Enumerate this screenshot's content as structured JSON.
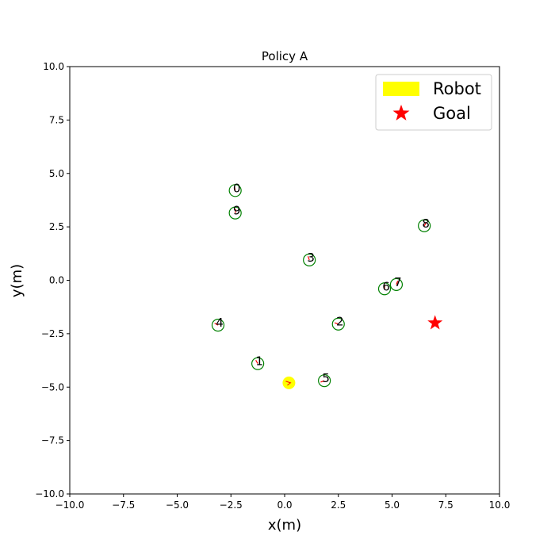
{
  "chart_data": {
    "type": "scatter",
    "title": "Policy A",
    "xlabel": "x(m)",
    "ylabel": "y(m)",
    "xlim": [
      -10,
      10
    ],
    "ylim": [
      -10,
      10
    ],
    "xticks": [
      -10,
      -7.5,
      -5,
      -2.5,
      0,
      2.5,
      5,
      7.5,
      10
    ],
    "yticks": [
      -10,
      -7.5,
      -5,
      -2.5,
      0,
      2.5,
      5,
      7.5,
      10
    ],
    "xtick_labels": [
      "−10.0",
      "−7.5",
      "−5.0",
      "−2.5",
      "0.0",
      "2.5",
      "5.0",
      "7.5",
      "10.0"
    ],
    "ytick_labels": [
      "−10.0",
      "−7.5",
      "−5.0",
      "−2.5",
      "0.0",
      "2.5",
      "5.0",
      "7.5",
      "10.0"
    ],
    "grid": false,
    "legend": {
      "placement": "top-right",
      "entries": [
        {
          "label": "Robot",
          "marker": "patch",
          "color": "#ffff00"
        },
        {
          "label": "Goal",
          "marker": "star",
          "color": "#ff0000"
        }
      ]
    },
    "robot": {
      "x": 0.2,
      "y": -4.8,
      "color": "#ffff00",
      "heading_color": "#ff0000"
    },
    "goal": {
      "x": 7.0,
      "y": -2.0,
      "color": "#ff0000"
    },
    "agents": [
      {
        "id": "0",
        "x": -2.3,
        "y": 4.2,
        "heading": 100
      },
      {
        "id": "1",
        "x": -1.25,
        "y": -3.9,
        "heading": 120
      },
      {
        "id": "2",
        "x": 2.5,
        "y": -2.05,
        "heading": 160
      },
      {
        "id": "3",
        "x": 1.15,
        "y": 0.95,
        "heading": 110
      },
      {
        "id": "4",
        "x": -3.1,
        "y": -2.1,
        "heading": 150
      },
      {
        "id": "5",
        "x": 1.85,
        "y": -4.7,
        "heading": 200
      },
      {
        "id": "6",
        "x": 4.65,
        "y": -0.4,
        "heading": 90
      },
      {
        "id": "7",
        "x": 5.2,
        "y": -0.2,
        "heading": 70
      },
      {
        "id": "8",
        "x": 6.5,
        "y": 2.55,
        "heading": 60
      },
      {
        "id": "9",
        "x": -2.3,
        "y": 3.15,
        "heading": 80
      }
    ],
    "agent_color": "#008000",
    "heading_color": "#ff0000"
  }
}
